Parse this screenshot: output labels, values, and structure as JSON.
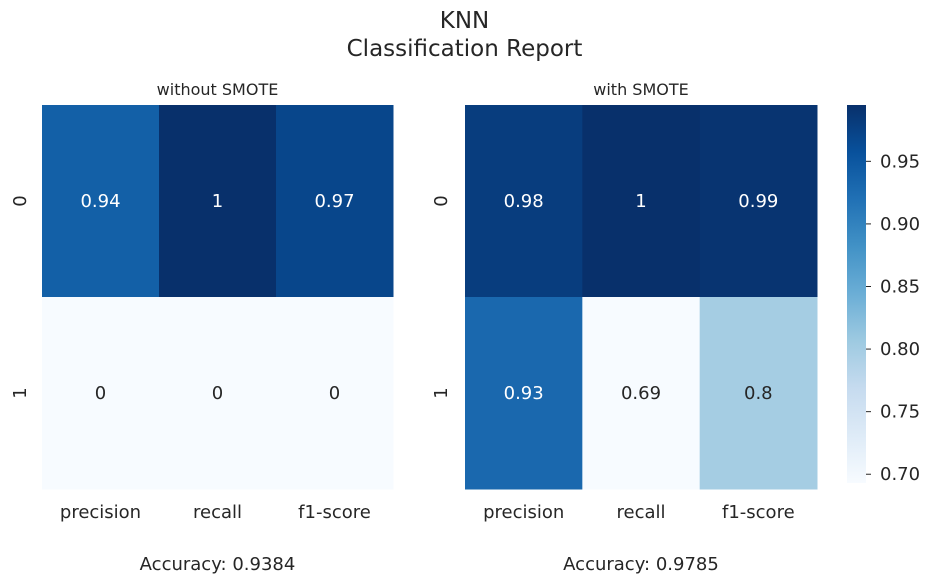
{
  "figure": {
    "title_line1": "KNN",
    "title_line2": "Classification Report"
  },
  "chart_data": [
    {
      "type": "heatmap",
      "title": "without SMOTE",
      "x_tick_labels": [
        "precision",
        "recall",
        "f1-score"
      ],
      "y_tick_labels": [
        "0",
        "1"
      ],
      "values": [
        [
          0.94,
          1,
          0.97
        ],
        [
          0,
          0,
          0
        ]
      ],
      "value_labels": [
        [
          "0.94",
          "1",
          "0.97"
        ],
        [
          "0",
          "0",
          "0"
        ]
      ],
      "footer": "Accuracy: 0.9384",
      "colormap": "Blues",
      "colorbar": false
    },
    {
      "type": "heatmap",
      "title": "with SMOTE",
      "x_tick_labels": [
        "precision",
        "recall",
        "f1-score"
      ],
      "y_tick_labels": [
        "0",
        "1"
      ],
      "values": [
        [
          0.98,
          1,
          0.99
        ],
        [
          0.93,
          0.69,
          0.8
        ]
      ],
      "value_labels": [
        [
          "0.98",
          "1",
          "0.99"
        ],
        [
          "0.93",
          "0.69",
          "0.8"
        ]
      ],
      "footer": "Accuracy: 0.9785",
      "colormap": "Blues",
      "colorbar": true,
      "colorbar_range": [
        0.693,
        0.995
      ],
      "colorbar_ticks": [
        0.7,
        0.75,
        0.8,
        0.85,
        0.9,
        0.95
      ]
    }
  ],
  "colors": {
    "blues": [
      "#f7fbff",
      "#deebf7",
      "#c6dbef",
      "#9ecae1",
      "#6baed6",
      "#4292c6",
      "#2171b5",
      "#08519c",
      "#08306b"
    ],
    "text_dark": "#262626",
    "text_light": "#ffffff"
  }
}
